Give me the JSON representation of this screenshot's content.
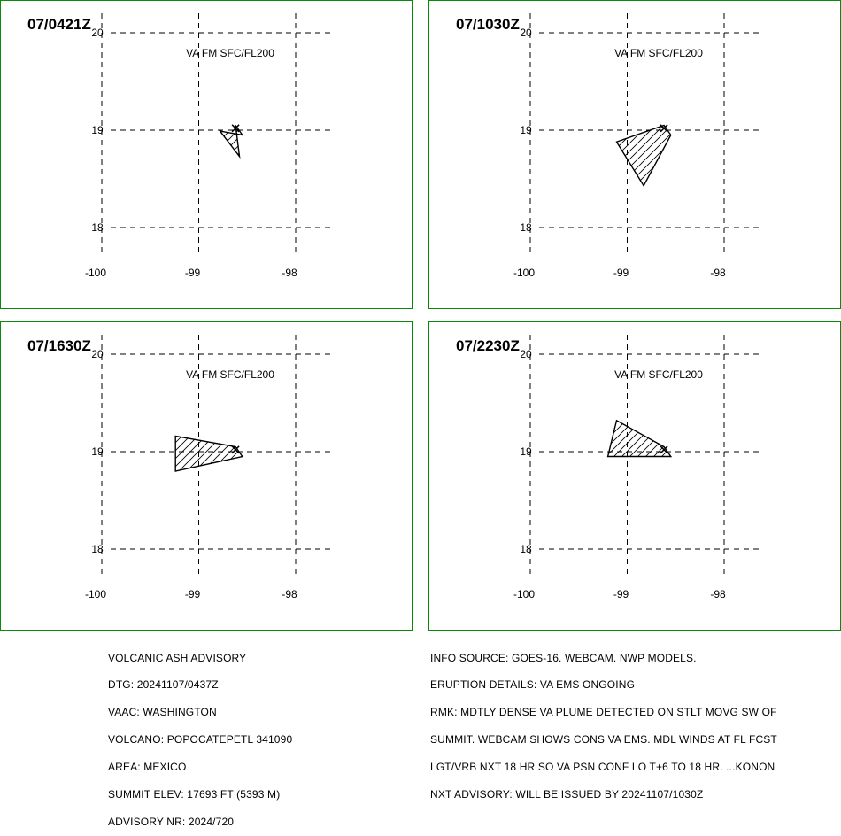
{
  "chart_data": [
    {
      "type": "map",
      "time_label": "07/0421Z",
      "layer_label": "VA FM SFC/FL200",
      "x_ticks": [
        "-100",
        "-99",
        "-98"
      ],
      "y_ticks": [
        "20",
        "19",
        "18"
      ],
      "volcano": {
        "lon": -98.62,
        "lat": 19.02
      },
      "polygon": [
        [
          -98.62,
          19.05
        ],
        [
          -98.55,
          18.95
        ],
        [
          -98.78,
          18.99
        ],
        [
          -98.58,
          18.73
        ]
      ]
    },
    {
      "type": "map",
      "time_label": "07/1030Z",
      "layer_label": "VA FM SFC/FL200",
      "x_ticks": [
        "-100",
        "-99",
        "-98"
      ],
      "y_ticks": [
        "20",
        "19",
        "18"
      ],
      "volcano": {
        "lon": -98.62,
        "lat": 19.02
      },
      "polygon": [
        [
          -98.62,
          19.05
        ],
        [
          -98.55,
          18.95
        ],
        [
          -98.83,
          18.43
        ],
        [
          -99.11,
          18.88
        ]
      ]
    },
    {
      "type": "map",
      "time_label": "07/1630Z",
      "layer_label": "VA FM SFC/FL200",
      "x_ticks": [
        "-100",
        "-99",
        "-98"
      ],
      "y_ticks": [
        "20",
        "19",
        "18"
      ],
      "volcano": {
        "lon": -98.62,
        "lat": 19.02
      },
      "polygon": [
        [
          -98.62,
          19.05
        ],
        [
          -98.55,
          18.95
        ],
        [
          -99.24,
          18.8
        ],
        [
          -99.24,
          19.16
        ]
      ]
    },
    {
      "type": "map",
      "time_label": "07/2230Z",
      "layer_label": "VA FM SFC/FL200",
      "x_ticks": [
        "-100",
        "-99",
        "-98"
      ],
      "y_ticks": [
        "20",
        "19",
        "18"
      ],
      "volcano": {
        "lon": -98.62,
        "lat": 19.02
      },
      "polygon": [
        [
          -98.62,
          19.05
        ],
        [
          -98.55,
          18.95
        ],
        [
          -99.2,
          18.95
        ],
        [
          -99.11,
          19.32
        ]
      ]
    }
  ],
  "advisory_left": [
    "VOLCANIC ASH ADVISORY",
    "DTG: 20241107/0437Z",
    "VAAC: WASHINGTON",
    "VOLCANO: POPOCATEPETL 341090",
    "AREA: MEXICO",
    "SUMMIT ELEV: 17693 FT (5393 M)",
    "ADVISORY NR: 2024/720"
  ],
  "advisory_right": [
    "INFO SOURCE: GOES-16. WEBCAM. NWP MODELS.",
    "ERUPTION DETAILS: VA EMS ONGOING",
    "RMK: MDTLY DENSE VA PLUME DETECTED ON STLT MOVG SW OF",
    "SUMMIT. WEBCAM SHOWS CONS VA EMS. MDL WINDS AT FL FCST",
    "LGT/VRB NXT 18 HR SO VA PSN CONF LO T+6 TO 18 HR. ...KONON",
    "NXT ADVISORY: WILL BE ISSUED BY 20241107/1030Z"
  ],
  "colors": {
    "frame": "#0a8a0a",
    "lines": "#000000",
    "background": "#ffffff"
  }
}
